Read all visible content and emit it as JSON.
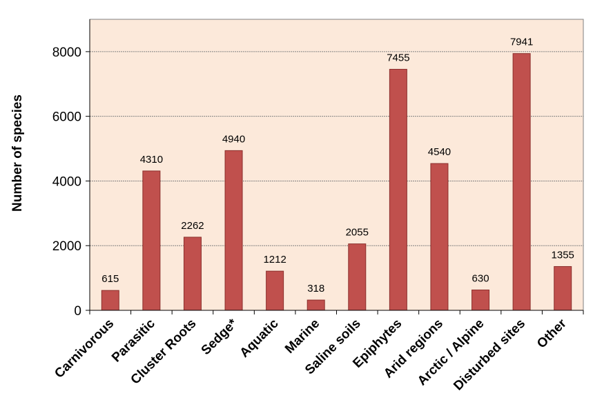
{
  "chart_data": {
    "type": "bar",
    "title": "",
    "xlabel": "",
    "ylabel": "Number of species",
    "categories": [
      "Carnivorous",
      "Parasitic",
      "Cluster Roots",
      "Sedge*",
      "Aquatic",
      "Marine",
      "Saline soils",
      "Epiphytes",
      "Arid regions",
      "Arctic / Alpine",
      "Disturbed sites",
      "Other"
    ],
    "values": [
      615,
      4310,
      2262,
      4940,
      1212,
      318,
      2055,
      7455,
      4540,
      630,
      7941,
      1355
    ],
    "ylim": [
      0,
      9000
    ],
    "yticks": [
      0,
      2000,
      4000,
      6000,
      8000
    ],
    "grid": true,
    "colors": {
      "plot_background": "#FCE9DA",
      "bar_fill": "#C0504D",
      "bar_stroke": "#8B2F2C",
      "gridline": "#808080"
    }
  }
}
